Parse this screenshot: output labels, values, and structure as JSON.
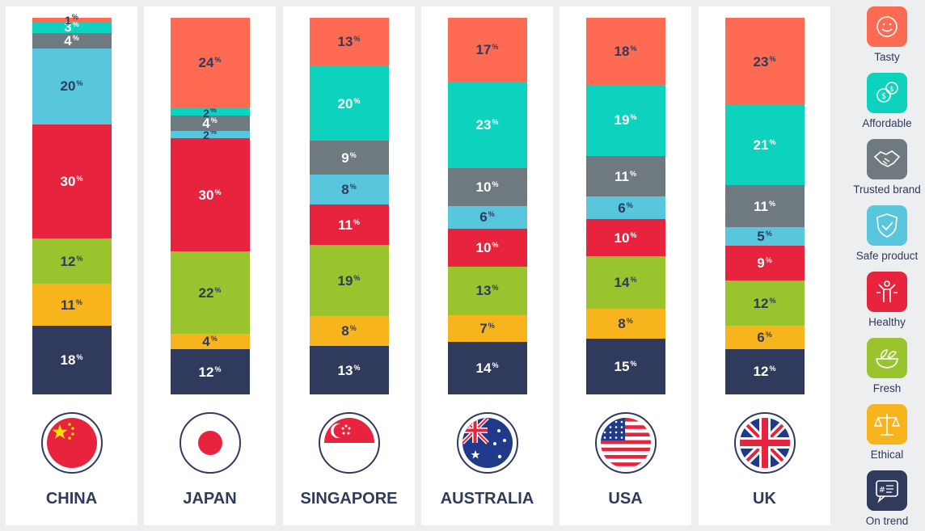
{
  "chart_data": {
    "type": "bar",
    "stacked": true,
    "value_suffix": "%",
    "categories": [
      "CHINA",
      "JAPAN",
      "SINGAPORE",
      "AUSTRALIA",
      "USA",
      "UK"
    ],
    "series": [
      {
        "name": "On trend",
        "color": "#2f3a5c",
        "values": [
          18,
          12,
          13,
          14,
          15,
          12
        ]
      },
      {
        "name": "Ethical",
        "color": "#f7b41c",
        "values": [
          11,
          4,
          8,
          7,
          8,
          6
        ]
      },
      {
        "name": "Fresh",
        "color": "#99c42e",
        "values": [
          12,
          22,
          19,
          13,
          14,
          12
        ]
      },
      {
        "name": "Healthy",
        "color": "#e8233d",
        "values": [
          30,
          30,
          11,
          10,
          10,
          9
        ]
      },
      {
        "name": "Safe product",
        "color": "#58c6dc",
        "values": [
          20,
          2,
          8,
          6,
          6,
          5
        ]
      },
      {
        "name": "Trusted brand",
        "color": "#6e7a80",
        "values": [
          4,
          4,
          9,
          10,
          11,
          11
        ]
      },
      {
        "name": "Affordable",
        "color": "#0dd3be",
        "values": [
          3,
          2,
          20,
          23,
          19,
          21
        ]
      },
      {
        "name": "Tasty",
        "color": "#ff6b52",
        "values": [
          1,
          24,
          13,
          17,
          18,
          23
        ]
      }
    ],
    "ylim": [
      0,
      100
    ],
    "legend_position": "right",
    "grid": false
  },
  "legend": [
    {
      "label": "Tasty",
      "icon": "smiley-icon",
      "color": "#ff6b52"
    },
    {
      "label": "Affordable",
      "icon": "coins-icon",
      "color": "#0dd3be"
    },
    {
      "label": "Trusted brand",
      "icon": "handshake-icon",
      "color": "#6e7a80"
    },
    {
      "label": "Safe product",
      "icon": "shield-icon",
      "color": "#58c6dc"
    },
    {
      "label": "Healthy",
      "icon": "person-icon",
      "color": "#e8233d"
    },
    {
      "label": "Fresh",
      "icon": "bowl-icon",
      "color": "#99c42e"
    },
    {
      "label": "Ethical",
      "icon": "scales-icon",
      "color": "#f7b41c"
    },
    {
      "label": "On trend",
      "icon": "hashtag-icon",
      "color": "#2f3a5c"
    }
  ],
  "flags": [
    "china-flag-icon",
    "japan-flag-icon",
    "singapore-flag-icon",
    "australia-flag-icon",
    "usa-flag-icon",
    "uk-flag-icon"
  ]
}
